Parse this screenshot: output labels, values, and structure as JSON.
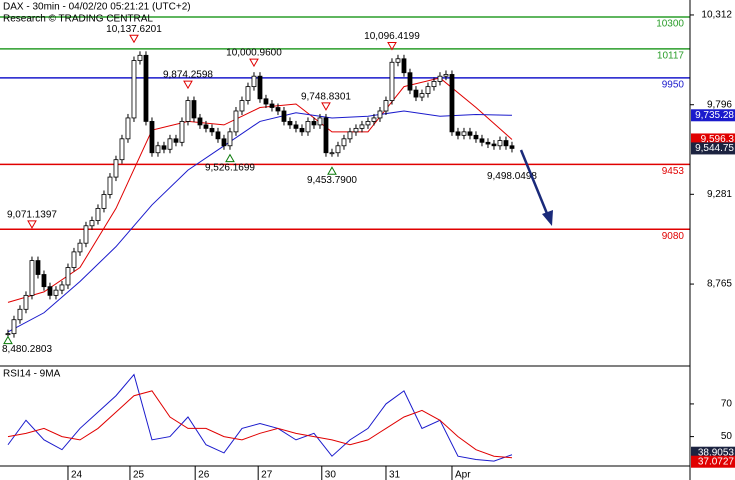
{
  "chart_data": {
    "type": "candlestick",
    "title": "DAX - 30min - 04/02/20 05:21:21 (UTC+2)",
    "subtitle": "Research © TRADING CENTRAL",
    "close": [
      8480,
      8560,
      8620,
      8700,
      8900,
      8820,
      8750,
      8700,
      8730,
      8760,
      8860,
      8950,
      9000,
      9100,
      9130,
      9200,
      9280,
      9380,
      9480,
      9600,
      9720,
      10050,
      10080,
      9700,
      9520,
      9560,
      9540,
      9600,
      9580,
      9700,
      9820,
      9720,
      9680,
      9660,
      9640,
      9600,
      9560,
      9640,
      9760,
      9820,
      9900,
      9960,
      9830,
      9800,
      9780,
      9760,
      9700,
      9680,
      9660,
      9640,
      9700,
      9680,
      9720,
      9520,
      9520,
      9560,
      9600,
      9640,
      9660,
      9680,
      9700,
      9720,
      9760,
      9820,
      10040,
      10060,
      9980,
      9880,
      9840,
      9860,
      9900,
      9930,
      9960,
      9970,
      9640,
      9620,
      9640,
      9620,
      9600,
      9580,
      9570,
      9560,
      9590,
      9560,
      9544.75
    ],
    "close_last_label": "9,544.75",
    "close_last_color": "#1c2340",
    "up_color": "#ffffff",
    "down_color": "#000000",
    "overlays": [
      {
        "color": "#e00000",
        "x": [
          0,
          6,
          12,
          18,
          24,
          30,
          36,
          42,
          48,
          54,
          60,
          66,
          72,
          78,
          84
        ],
        "values": [
          8660,
          8720,
          8860,
          9200,
          9650,
          9700,
          9680,
          9780,
          9800,
          9640,
          9640,
          9900,
          9950,
          9780,
          9596.3
        ],
        "last_label": "9,596.3"
      },
      {
        "color": "#1a1acc",
        "x": [
          0,
          6,
          12,
          18,
          24,
          30,
          36,
          42,
          48,
          54,
          60,
          66,
          72,
          78,
          84
        ],
        "values": [
          8490,
          8600,
          8780,
          8980,
          9220,
          9420,
          9560,
          9700,
          9750,
          9720,
          9730,
          9760,
          9730,
          9740,
          9735.28
        ],
        "last_label": "9,735.28"
      }
    ],
    "levels": [
      {
        "value": 10300,
        "color": "#2a9d2a"
      },
      {
        "value": 10117,
        "color": "#2a9d2a"
      },
      {
        "value": 9950,
        "color": "#1a1acc"
      },
      {
        "value": 9453,
        "color": "#e00000"
      },
      {
        "value": 9080,
        "color": "#e00000"
      }
    ],
    "annotations": [
      {
        "index": 0,
        "value": 8480.2803,
        "label": "8,480.2803",
        "marker": "up"
      },
      {
        "index": 4,
        "value": 9071.1397,
        "label": "9,071.1397",
        "marker": "down"
      },
      {
        "index": 21,
        "value": 10137.6201,
        "label": "10,137.6201",
        "marker": "down"
      },
      {
        "index": 30,
        "value": 9874.2598,
        "label": "9,874.2598",
        "marker": "down"
      },
      {
        "index": 41,
        "value": 10000.96,
        "label": "10,000.9600",
        "marker": "down"
      },
      {
        "index": 37,
        "value": 9526.1699,
        "label": "9,526.1699",
        "marker": "up"
      },
      {
        "index": 53,
        "value": 9748.8301,
        "label": "9,748.8301",
        "marker": "down"
      },
      {
        "index": 54,
        "value": 9453.79,
        "label": "9,453.7900",
        "marker": "up"
      },
      {
        "index": 64,
        "value": 10096.4199,
        "label": "10,096.4199",
        "marker": "down"
      },
      {
        "index": 84,
        "value": 9498.0498,
        "label": "9,498.0498"
      }
    ],
    "xlim": [
      -1.33,
      113.67
    ],
    "ylim": [
      8294,
      10398
    ],
    "yticks": [
      {
        "value": 10312,
        "label": "10,312"
      },
      {
        "value": 9796,
        "label": "9,796"
      },
      {
        "value": 9281,
        "label": "9,281"
      },
      {
        "value": 8765,
        "label": "8,765"
      }
    ],
    "xticks": [
      {
        "value": 10,
        "label": "24"
      },
      {
        "value": 20.33,
        "label": "25"
      },
      {
        "value": 31.2,
        "label": "26"
      },
      {
        "value": 41.7,
        "label": "27"
      },
      {
        "value": 52.3,
        "label": "30"
      },
      {
        "value": 63,
        "label": "31"
      },
      {
        "value": 74,
        "label": "Apr"
      }
    ],
    "rsi": {
      "title": "RSI14 - 9MA",
      "ylim": [
        32,
        92.6
      ],
      "yticks": [
        70,
        50
      ],
      "series": [
        {
          "color": "#1a1acc",
          "x": [
            0,
            3,
            6,
            9,
            12,
            15,
            18,
            21,
            24,
            27,
            30,
            33,
            36,
            39,
            42,
            45,
            48,
            51,
            54,
            57,
            60,
            63,
            66,
            69,
            72,
            75,
            78,
            81,
            84
          ],
          "values": [
            45,
            60,
            48,
            42,
            55,
            65,
            75,
            88,
            48,
            50,
            62,
            45,
            40,
            55,
            58,
            55,
            48,
            52,
            38,
            48,
            55,
            70,
            78,
            55,
            60,
            38,
            36,
            35,
            38.9053
          ],
          "last_label": "38.9053",
          "label_color": "#1c2340"
        },
        {
          "color": "#e00000",
          "x": [
            0,
            3,
            6,
            9,
            12,
            15,
            18,
            21,
            24,
            27,
            30,
            33,
            36,
            39,
            42,
            45,
            48,
            51,
            54,
            57,
            60,
            63,
            66,
            69,
            72,
            75,
            78,
            81,
            84
          ],
          "values": [
            50,
            52,
            55,
            50,
            48,
            55,
            65,
            75,
            78,
            62,
            55,
            55,
            50,
            48,
            52,
            55,
            52,
            50,
            48,
            45,
            48,
            55,
            62,
            66,
            60,
            50,
            42,
            38,
            37.0727
          ],
          "last_label": "37.0727",
          "label_color": "#e00000"
        }
      ]
    }
  }
}
